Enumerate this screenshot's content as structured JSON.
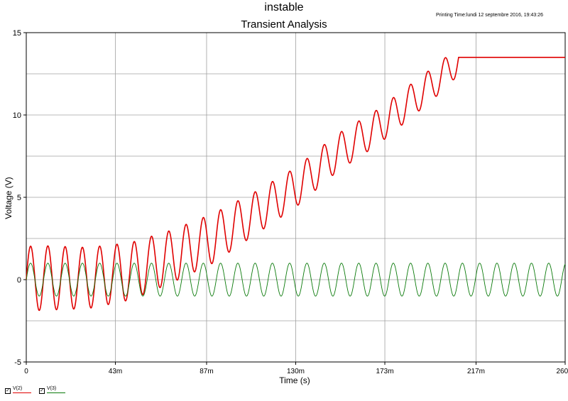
{
  "header": {
    "title": "instable",
    "subtitle": "Transient Analysis",
    "printing_time": "Printing Time:lundi 12 septembre 2016, 19:43:26"
  },
  "colors": {
    "v2": "#e00000",
    "v3": "#0a7a0a",
    "grid": "#a0a0a0",
    "axis": "#000000"
  },
  "chart_data": {
    "type": "line",
    "title": "Transient Analysis",
    "xlabel": "Time (s)",
    "ylabel": "Voltage (V)",
    "xlim": [
      0,
      260
    ],
    "ylim": [
      -5,
      15
    ],
    "x_unit": "ms",
    "x_ticks": [
      0,
      43,
      87,
      130,
      173,
      217,
      260
    ],
    "x_tick_labels": [
      "0",
      "43m",
      "87m",
      "130m",
      "173m",
      "217m",
      "260m"
    ],
    "y_ticks": [
      -5,
      0,
      5,
      10,
      15
    ],
    "y_tick_labels": [
      "-5",
      "0",
      "5",
      "10",
      "15"
    ],
    "grid": true,
    "legend_position": "bottom-left",
    "series": [
      {
        "name": "V(2)",
        "color": "#e00000",
        "description": "oscillation frequency ~120 Hz with growing DC offset, saturating at 13.5 V",
        "frequency_hz": 120,
        "points": [
          [
            0,
            0
          ],
          [
            5,
            0.1
          ],
          [
            30,
            0.1
          ],
          [
            50,
            0.5
          ],
          [
            70,
            1.4
          ],
          [
            90,
            2.5
          ],
          [
            110,
            4.0
          ],
          [
            130,
            5.6
          ],
          [
            150,
            7.7
          ],
          [
            170,
            9.3
          ],
          [
            190,
            11.3
          ],
          [
            200,
            12.3
          ],
          [
            210,
            13.5
          ],
          [
            260,
            13.5
          ]
        ],
        "amplitude": [
          [
            0,
            2.0
          ],
          [
            40,
            1.8
          ],
          [
            70,
            1.6
          ],
          [
            90,
            1.5
          ],
          [
            110,
            1.3
          ],
          [
            130,
            1.2
          ],
          [
            160,
            1.1
          ],
          [
            190,
            1.0
          ],
          [
            205,
            0.9
          ]
        ],
        "saturation": 13.5,
        "saturation_start": 210
      },
      {
        "name": "V(3)",
        "color": "#0a7a0a",
        "description": "sine wave ~120 Hz, amplitude 1 V",
        "frequency_hz": 120,
        "amplitude": 1.0,
        "offset": 0
      }
    ]
  },
  "legend": [
    {
      "label": "V(2)",
      "color": "#e00000",
      "checked": "✓"
    },
    {
      "label": "V(3)",
      "color": "#0a7a0a",
      "checked": "✓"
    }
  ]
}
